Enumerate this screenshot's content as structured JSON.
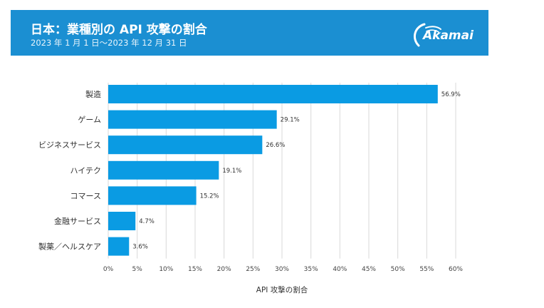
{
  "header": {
    "title": "日本：業種別の API 攻撃の割合",
    "subtitle": "2023 年 1 月 1 日～2023 年 12 月 31 日",
    "logo_text": "Akamai"
  },
  "colors": {
    "banner": "#1b8fd2",
    "bar": "#0a9be3",
    "grid": "#d9d9d9"
  },
  "chart_data": {
    "type": "bar",
    "orientation": "horizontal",
    "title": "日本：業種別の API 攻撃の割合",
    "subtitle": "2023 年 1 月 1 日～2023 年 12 月 31 日",
    "xlabel": "API 攻撃の割合",
    "ylabel": "",
    "categories": [
      "製造",
      "ゲーム",
      "ビジネスサービス",
      "ハイテク",
      "コマース",
      "金融サービス",
      "製薬／ヘルスケア"
    ],
    "values": [
      56.9,
      29.1,
      26.6,
      19.1,
      15.2,
      4.7,
      3.6
    ],
    "value_labels": [
      "56.9%",
      "29.1%",
      "26.6%",
      "19.1%",
      "15.2%",
      "4.7%",
      "3.6%"
    ],
    "xlim": [
      0,
      60
    ],
    "xticks": [
      0,
      5,
      10,
      15,
      20,
      25,
      30,
      35,
      40,
      45,
      50,
      55,
      60
    ],
    "xtick_labels": [
      "0%",
      "5%",
      "10%",
      "15%",
      "20%",
      "25%",
      "30%",
      "35%",
      "40%",
      "45%",
      "50%",
      "55%",
      "60%"
    ],
    "grid": true,
    "legend": "none"
  }
}
